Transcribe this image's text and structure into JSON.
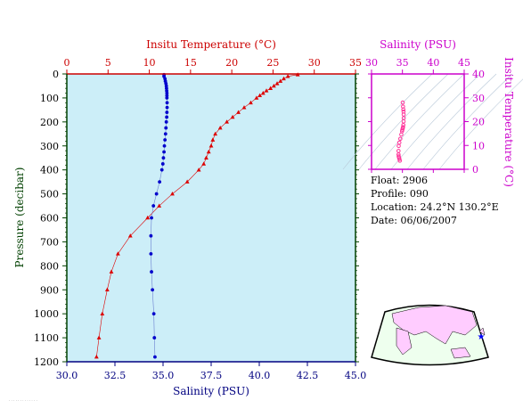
{
  "chart_data": [
    {
      "type": "scatter",
      "title": "",
      "temp_axis": {
        "label": "Insitu Temperature (°C)",
        "range": [
          0,
          35
        ],
        "ticks": [
          0,
          5,
          10,
          15,
          20,
          25,
          30,
          35
        ],
        "color": "#cc0000"
      },
      "sal_axis": {
        "label": "Salinity (PSU)",
        "range": [
          30.0,
          45.0
        ],
        "ticks": [
          "30.0",
          "32.5",
          "35.0",
          "37.5",
          "40.0",
          "42.5",
          "45.0"
        ],
        "color": "#000080"
      },
      "pressure_axis": {
        "label": "Pressure (decibar)",
        "range": [
          0,
          1200
        ],
        "ticks": [
          0,
          100,
          200,
          300,
          400,
          500,
          600,
          700,
          800,
          900,
          1000,
          1100,
          1200
        ],
        "inverted": true,
        "color": "#004000"
      },
      "background": "#cceef8",
      "series": [
        {
          "name": "Temperature",
          "color": "#dd0000",
          "marker": "triangle",
          "points": [
            {
              "p": 3,
              "t": 28.0
            },
            {
              "p": 10,
              "t": 26.8
            },
            {
              "p": 20,
              "t": 26.3
            },
            {
              "p": 30,
              "t": 25.9
            },
            {
              "p": 40,
              "t": 25.5
            },
            {
              "p": 50,
              "t": 25.1
            },
            {
              "p": 60,
              "t": 24.7
            },
            {
              "p": 70,
              "t": 24.2
            },
            {
              "p": 80,
              "t": 23.8
            },
            {
              "p": 90,
              "t": 23.4
            },
            {
              "p": 100,
              "t": 23.0
            },
            {
              "p": 120,
              "t": 22.3
            },
            {
              "p": 140,
              "t": 21.5
            },
            {
              "p": 160,
              "t": 20.8
            },
            {
              "p": 180,
              "t": 20.1
            },
            {
              "p": 200,
              "t": 19.4
            },
            {
              "p": 225,
              "t": 18.6
            },
            {
              "p": 250,
              "t": 18.0
            },
            {
              "p": 275,
              "t": 17.7
            },
            {
              "p": 300,
              "t": 17.5
            },
            {
              "p": 325,
              "t": 17.2
            },
            {
              "p": 350,
              "t": 16.9
            },
            {
              "p": 375,
              "t": 16.6
            },
            {
              "p": 400,
              "t": 16.0
            },
            {
              "p": 450,
              "t": 14.6
            },
            {
              "p": 500,
              "t": 12.8
            },
            {
              "p": 550,
              "t": 11.2
            },
            {
              "p": 600,
              "t": 9.8
            },
            {
              "p": 675,
              "t": 7.7
            },
            {
              "p": 750,
              "t": 6.2
            },
            {
              "p": 825,
              "t": 5.4
            },
            {
              "p": 900,
              "t": 4.9
            },
            {
              "p": 1000,
              "t": 4.3
            },
            {
              "p": 1100,
              "t": 3.9
            },
            {
              "p": 1180,
              "t": 3.6
            }
          ]
        },
        {
          "name": "Salinity",
          "color": "#0000cc",
          "marker": "circle",
          "points": [
            {
              "p": 3,
              "s": 35.05
            },
            {
              "p": 10,
              "s": 35.05
            },
            {
              "p": 20,
              "s": 35.1
            },
            {
              "p": 30,
              "s": 35.12
            },
            {
              "p": 40,
              "s": 35.15
            },
            {
              "p": 50,
              "s": 35.17
            },
            {
              "p": 60,
              "s": 35.18
            },
            {
              "p": 70,
              "s": 35.19
            },
            {
              "p": 80,
              "s": 35.2
            },
            {
              "p": 90,
              "s": 35.2
            },
            {
              "p": 100,
              "s": 35.2
            },
            {
              "p": 120,
              "s": 35.21
            },
            {
              "p": 140,
              "s": 35.21
            },
            {
              "p": 160,
              "s": 35.2
            },
            {
              "p": 180,
              "s": 35.19
            },
            {
              "p": 200,
              "s": 35.17
            },
            {
              "p": 225,
              "s": 35.15
            },
            {
              "p": 250,
              "s": 35.13
            },
            {
              "p": 275,
              "s": 35.1
            },
            {
              "p": 300,
              "s": 35.07
            },
            {
              "p": 325,
              "s": 35.05
            },
            {
              "p": 350,
              "s": 35.02
            },
            {
              "p": 375,
              "s": 34.99
            },
            {
              "p": 400,
              "s": 34.94
            },
            {
              "p": 450,
              "s": 34.82
            },
            {
              "p": 500,
              "s": 34.66
            },
            {
              "p": 550,
              "s": 34.5
            },
            {
              "p": 600,
              "s": 34.4
            },
            {
              "p": 675,
              "s": 34.37
            },
            {
              "p": 750,
              "s": 34.37
            },
            {
              "p": 825,
              "s": 34.4
            },
            {
              "p": 900,
              "s": 34.45
            },
            {
              "p": 1000,
              "s": 34.52
            },
            {
              "p": 1100,
              "s": 34.55
            },
            {
              "p": 1180,
              "s": 34.58
            }
          ]
        }
      ]
    },
    {
      "type": "scatter",
      "title": "",
      "x_axis": {
        "label": "Salinity (PSU)",
        "range": [
          30,
          45
        ],
        "ticks": [
          30,
          35,
          40,
          45
        ],
        "color": "#cc00cc"
      },
      "y_axis": {
        "label": "Insitu Temperature (°C)",
        "range": [
          0,
          40
        ],
        "ticks": [
          0,
          10,
          20,
          30,
          40
        ],
        "color": "#cc00cc"
      },
      "marker_color": "#ff3399",
      "points": [
        {
          "s": 35.05,
          "t": 28.0
        },
        {
          "s": 35.1,
          "t": 26.3
        },
        {
          "s": 35.15,
          "t": 25.1
        },
        {
          "s": 35.18,
          "t": 24.2
        },
        {
          "s": 35.2,
          "t": 23.0
        },
        {
          "s": 35.21,
          "t": 21.5
        },
        {
          "s": 35.19,
          "t": 20.1
        },
        {
          "s": 35.15,
          "t": 18.6
        },
        {
          "s": 35.1,
          "t": 17.7
        },
        {
          "s": 35.05,
          "t": 17.2
        },
        {
          "s": 34.99,
          "t": 16.6
        },
        {
          "s": 34.94,
          "t": 16.0
        },
        {
          "s": 34.82,
          "t": 14.6
        },
        {
          "s": 34.66,
          "t": 12.8
        },
        {
          "s": 34.5,
          "t": 11.2
        },
        {
          "s": 34.4,
          "t": 9.8
        },
        {
          "s": 34.37,
          "t": 7.7
        },
        {
          "s": 34.37,
          "t": 6.2
        },
        {
          "s": 34.4,
          "t": 5.4
        },
        {
          "s": 34.45,
          "t": 4.9
        },
        {
          "s": 34.52,
          "t": 4.3
        },
        {
          "s": 34.58,
          "t": 3.6
        }
      ]
    }
  ],
  "info": {
    "float": "Float:  2906",
    "profile": "Profile:  090",
    "location": "Location:  24.2°N  130.2°E",
    "date": "Date:  06/06/2007"
  },
  "map": {
    "marker_color": "#0000ff",
    "land_color": "#ffccff",
    "ocean_color": "#eeffee",
    "float_lat": 24.2,
    "float_lon": 130.2
  }
}
